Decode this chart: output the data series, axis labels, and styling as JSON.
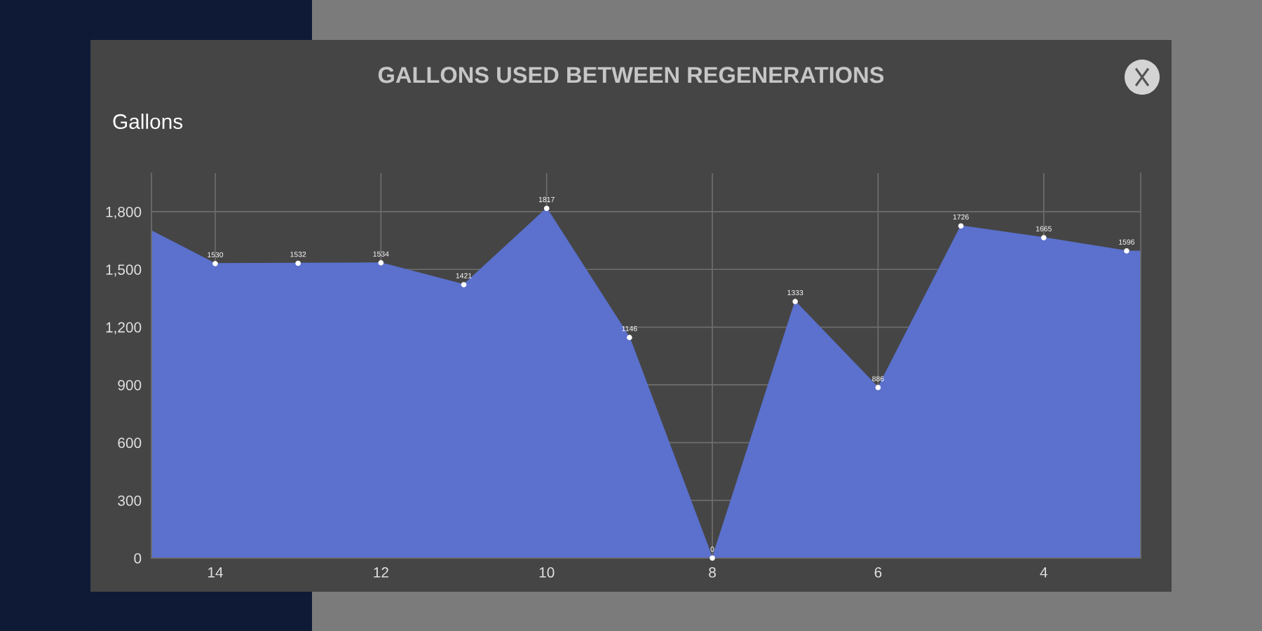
{
  "chart_data": {
    "type": "area",
    "title": "GALLONS USED BETWEEN REGENERATIONS",
    "ylabel": "Gallons",
    "x": [
      14.77,
      14,
      13,
      12,
      11,
      10,
      9,
      8,
      7,
      6,
      5,
      4,
      3,
      2.83
    ],
    "values": [
      1700,
      1530,
      1532,
      1534,
      1421,
      1817,
      1146,
      0,
      1333,
      886,
      1726,
      1665,
      1596,
      1595
    ],
    "value_labels": [
      null,
      "1530",
      "1532",
      "1534",
      "1421",
      "1817",
      "1146",
      "0",
      "1333",
      "886",
      "1726",
      "1665",
      "1596",
      null
    ],
    "color": "#5b71cd",
    "marker": "circle",
    "grid": true,
    "xlim": [
      14.77,
      2.83
    ],
    "xticks": [
      14,
      12,
      10,
      8,
      6,
      4
    ],
    "ylim": [
      0,
      2000
    ],
    "yticks": [
      0,
      300,
      600,
      900,
      {
        "value": 1200,
        "label": "1,200"
      },
      {
        "value": 1500,
        "label": "1,500"
      },
      {
        "value": 1800,
        "label": "1,800"
      }
    ]
  }
}
